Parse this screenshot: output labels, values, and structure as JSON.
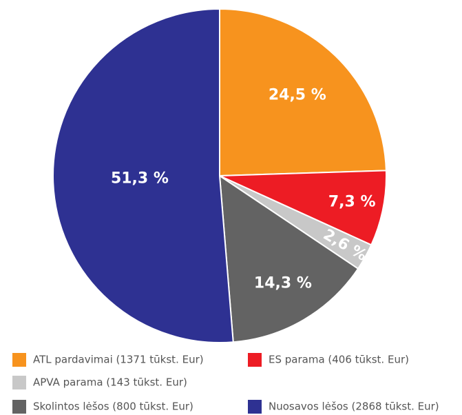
{
  "chart_data": {
    "type": "pie",
    "categories": [
      "ATL pardavimai  (1371 tūkst. Eur)",
      "ES parama (406 tūkst. Eur)",
      "APVA parama (143 tūkst. Eur)",
      "Skolintos lėšos (800 tūkst. Eur)",
      "Nuosavos lėšos (2868 tūkst. Eur)"
    ],
    "values": [
      24.5,
      7.3,
      2.6,
      14.3,
      51.3
    ],
    "value_labels": [
      "24,5 %",
      "7,3 %",
      "2,6 %",
      "14,3 %",
      "51,3 %"
    ],
    "colors": [
      "#f7931e",
      "#ed1c24",
      "#c8c8c8",
      "#636363",
      "#2e3192"
    ]
  }
}
